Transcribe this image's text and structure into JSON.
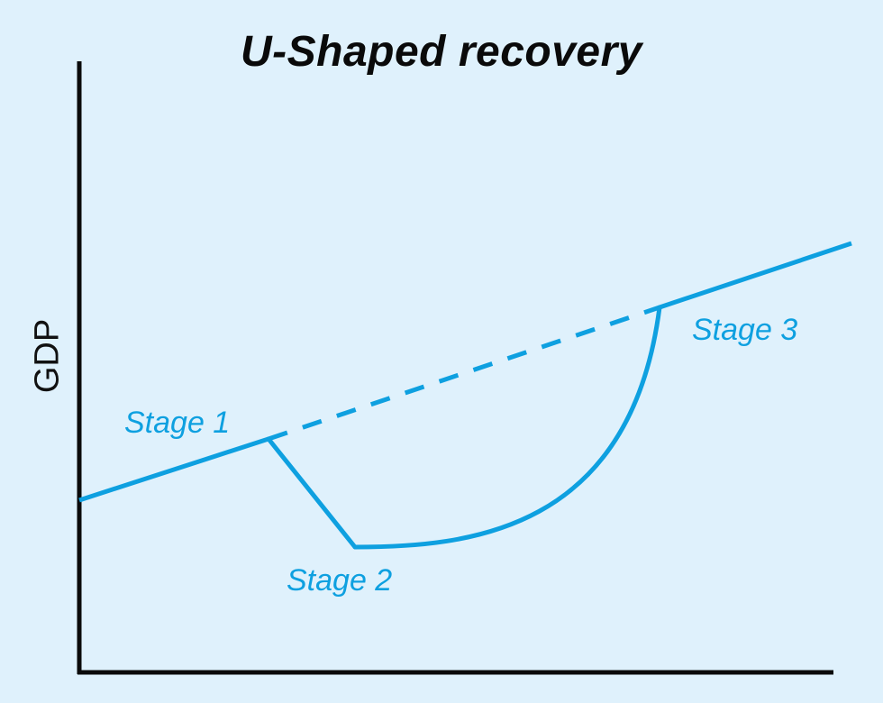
{
  "title": "U-Shaped recovery",
  "ylabel": "GDP",
  "stages": {
    "stage1": "Stage 1",
    "stage2": "Stage 2",
    "stage3": "Stage 3"
  },
  "colors": {
    "background": "#dff1fc",
    "curve": "#0ea0e0",
    "axis": "#0a0a0a",
    "title": "#0a0a0a"
  }
}
